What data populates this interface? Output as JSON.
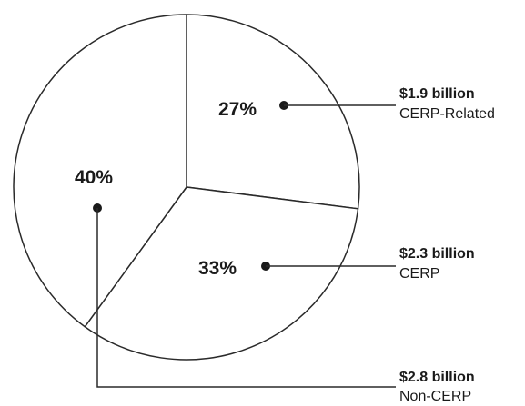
{
  "chart_data": {
    "type": "pie",
    "title": "",
    "slices": [
      {
        "label": "CERP-Related",
        "amount": "$1.9 billion",
        "value": 27,
        "percent_label": "27%"
      },
      {
        "label": "CERP",
        "amount": "$2.3 billion",
        "value": 33,
        "percent_label": "33%"
      },
      {
        "label": "Non-CERP",
        "amount": "$2.8 billion",
        "value": 40,
        "percent_label": "40%"
      }
    ],
    "start_angle_deg": 0,
    "direction": "clockwise",
    "colors": {
      "outline": "#2a2a2a",
      "fill": "#ffffff",
      "text": "#1a1a1a"
    }
  }
}
